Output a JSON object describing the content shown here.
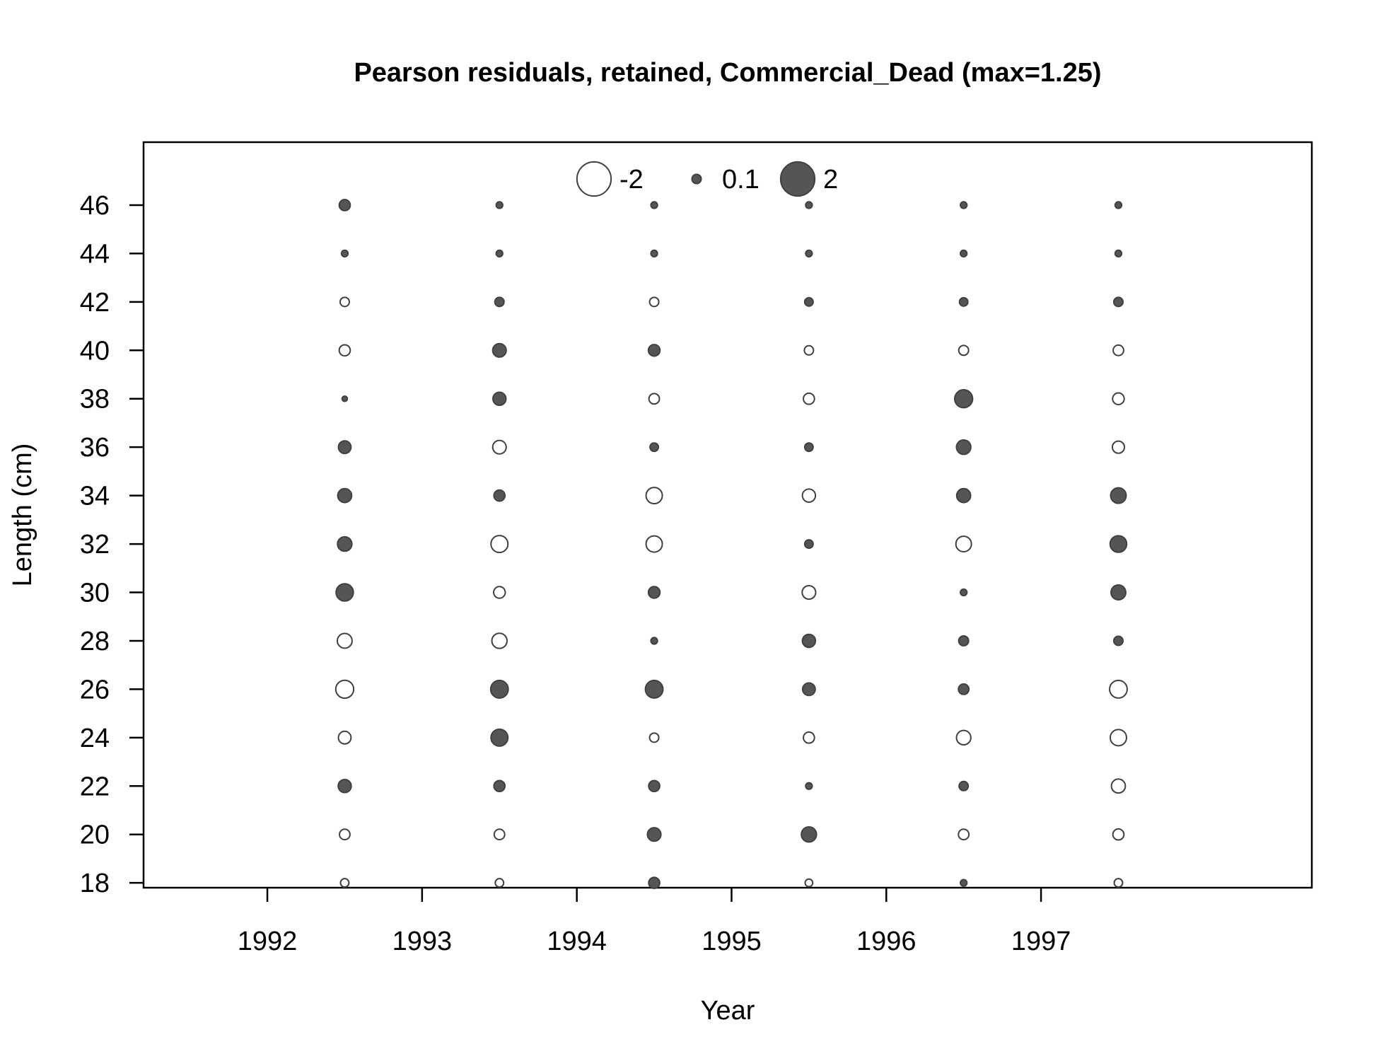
{
  "chart_data": {
    "type": "scatter",
    "title": "Pearson residuals, retained, Commercial_Dead (max=1.25)",
    "xlabel": "Year",
    "ylabel": "Length (cm)",
    "xlim": [
      1991.2,
      1998.75
    ],
    "ylim": [
      17.8,
      48.6
    ],
    "x_ticks": [
      1992,
      1993,
      1994,
      1995,
      1996,
      1997
    ],
    "y_ticks": [
      18,
      20,
      22,
      24,
      26,
      28,
      30,
      32,
      34,
      36,
      38,
      40,
      42,
      44,
      46
    ],
    "legend": {
      "placement": "top-center",
      "entries": [
        {
          "label": "-2",
          "value": -2
        },
        {
          "label": "0.1",
          "value": 0.1
        },
        {
          "label": "2",
          "value": 2
        }
      ]
    },
    "colors": {
      "positive_fill": "#555555",
      "negative_fill": "#ffffff",
      "stroke": "#404040"
    },
    "x": [
      1992.5,
      1993.5,
      1994.5,
      1995.5,
      1996.5,
      1997.5
    ],
    "lengths": [
      18,
      20,
      22,
      24,
      26,
      28,
      30,
      32,
      34,
      36,
      38,
      40,
      42,
      44,
      46
    ],
    "residuals": [
      [
        -0.2,
        -0.35,
        0.6,
        -0.55,
        -1.25,
        -0.8,
        1.15,
        0.75,
        0.7,
        0.55,
        0.05,
        -0.4,
        -0.25,
        0.1,
        0.4
      ],
      [
        -0.2,
        -0.35,
        0.4,
        1.1,
        1.2,
        -0.85,
        -0.45,
        -1.1,
        0.4,
        -0.65,
        0.6,
        0.65,
        0.25,
        0.1,
        0.1
      ],
      [
        0.4,
        0.65,
        0.4,
        -0.25,
        1.2,
        0.1,
        0.45,
        -1.0,
        -1.0,
        0.2,
        -0.35,
        0.45,
        -0.25,
        0.1,
        0.1
      ],
      [
        -0.15,
        0.85,
        0.1,
        -0.4,
        0.55,
        0.6,
        -0.65,
        0.2,
        -0.6,
        0.2,
        -0.4,
        -0.25,
        0.2,
        0.1,
        0.1
      ],
      [
        0.1,
        -0.35,
        0.25,
        -0.75,
        0.35,
        0.3,
        0.1,
        -0.9,
        0.7,
        0.75,
        1.25,
        -0.3,
        0.2,
        0.1,
        0.1
      ],
      [
        -0.2,
        -0.4,
        -0.7,
        -1.0,
        -1.2,
        0.25,
        0.8,
        1.05,
        0.9,
        -0.5,
        -0.45,
        -0.35,
        0.25,
        0.1,
        0.1
      ]
    ]
  }
}
